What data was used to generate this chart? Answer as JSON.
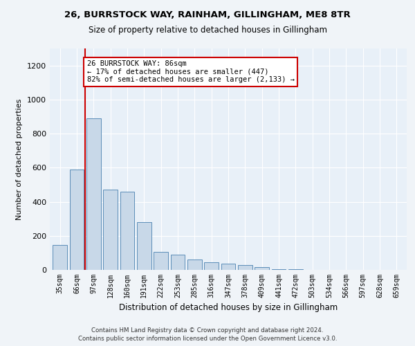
{
  "title1": "26, BURRSTOCK WAY, RAINHAM, GILLINGHAM, ME8 8TR",
  "title2": "Size of property relative to detached houses in Gillingham",
  "xlabel": "Distribution of detached houses by size in Gillingham",
  "ylabel": "Number of detached properties",
  "categories": [
    "35sqm",
    "66sqm",
    "97sqm",
    "128sqm",
    "160sqm",
    "191sqm",
    "222sqm",
    "253sqm",
    "285sqm",
    "316sqm",
    "347sqm",
    "378sqm",
    "409sqm",
    "441sqm",
    "472sqm",
    "503sqm",
    "534sqm",
    "566sqm",
    "597sqm",
    "628sqm",
    "659sqm"
  ],
  "values": [
    145,
    590,
    890,
    470,
    460,
    280,
    105,
    90,
    60,
    45,
    38,
    30,
    18,
    5,
    3,
    2,
    1,
    0,
    0,
    0,
    0
  ],
  "bar_color": "#c8d8e8",
  "bar_edge_color": "#5b8db8",
  "vline_x": 1.5,
  "vline_color": "#cc0000",
  "annotation_text": "26 BURRSTOCK WAY: 86sqm\n← 17% of detached houses are smaller (447)\n82% of semi-detached houses are larger (2,133) →",
  "annotation_box_color": "#ffffff",
  "annotation_box_edge": "#cc0000",
  "ylim": [
    0,
    1300
  ],
  "yticks": [
    0,
    200,
    400,
    600,
    800,
    1000,
    1200
  ],
  "footer1": "Contains HM Land Registry data © Crown copyright and database right 2024.",
  "footer2": "Contains public sector information licensed under the Open Government Licence v3.0.",
  "bg_color": "#f0f4f8",
  "plot_bg_color": "#e8f0f8"
}
